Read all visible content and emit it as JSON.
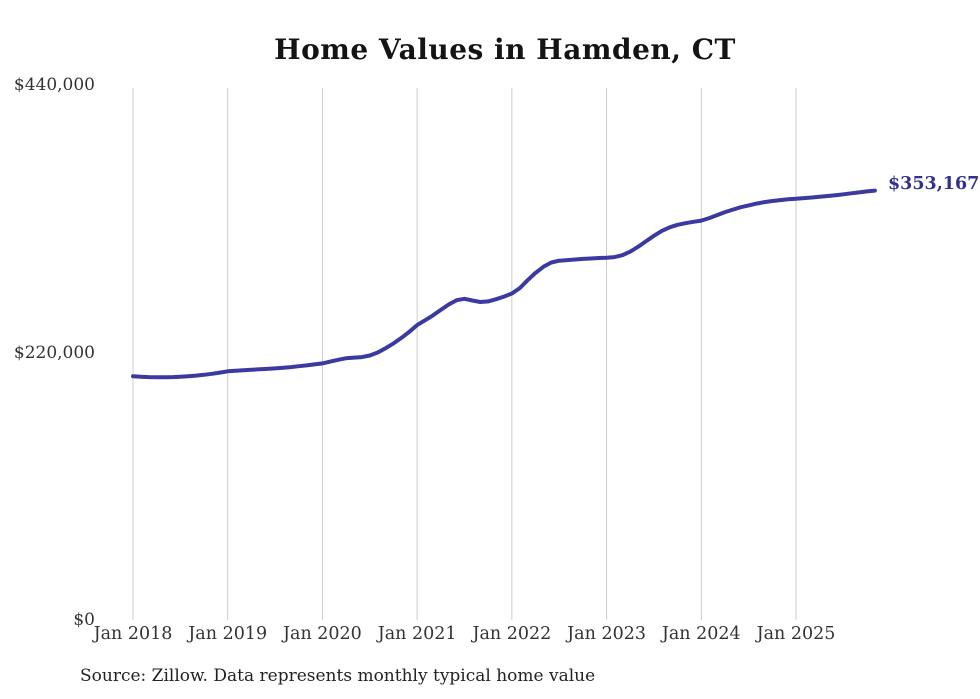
{
  "accent_color": "#3c3aa0",
  "label_color": "#31308f",
  "gridline_color": "#cccccc",
  "chart_data": {
    "type": "line",
    "title": "Home Values in Hamden, CT",
    "source_note": "Source: Zillow. Data represents monthly typical home value",
    "end_value_label": "$353,167",
    "x_start_month": "2018-01",
    "x_end_month": "2025-11",
    "ylim": [
      0,
      440000
    ],
    "grid": "vertical-only",
    "y_ticks": [
      {
        "label": "$0",
        "value": 0
      },
      {
        "label": "$220,000",
        "value": 220000
      },
      {
        "label": "$440,000",
        "value": 440000
      }
    ],
    "x_ticks": [
      {
        "label": "Jan 2018",
        "month_index": 0
      },
      {
        "label": "Jan 2019",
        "month_index": 12
      },
      {
        "label": "Jan 2020",
        "month_index": 24
      },
      {
        "label": "Jan 2021",
        "month_index": 36
      },
      {
        "label": "Jan 2022",
        "month_index": 48
      },
      {
        "label": "Jan 2023",
        "month_index": 60
      },
      {
        "label": "Jan 2024",
        "month_index": 72
      },
      {
        "label": "Jan 2025",
        "month_index": 84
      }
    ],
    "series": [
      {
        "name": "Typical home value (monthly)",
        "values": [
          200500,
          200100,
          199800,
          199600,
          199600,
          199800,
          200100,
          200500,
          201000,
          201700,
          202500,
          203500,
          204500,
          205000,
          205400,
          205800,
          206200,
          206500,
          206900,
          207400,
          208000,
          208700,
          209400,
          210200,
          211000,
          212500,
          214000,
          215300,
          215800,
          216200,
          217500,
          220000,
          223500,
          227500,
          232000,
          237000,
          242500,
          246500,
          250500,
          255000,
          259500,
          263000,
          264200,
          262800,
          261500,
          262000,
          263800,
          266000,
          268500,
          273000,
          279500,
          285500,
          290500,
          294000,
          295500,
          296000,
          296500,
          297000,
          297300,
          297700,
          298000,
          298500,
          300000,
          303000,
          307000,
          311500,
          316000,
          320000,
          323000,
          325000,
          326300,
          327500,
          328500,
          330500,
          333000,
          335500,
          337500,
          339500,
          341000,
          342500,
          343700,
          344600,
          345300,
          346000,
          346500,
          347000,
          347500,
          348100,
          348700,
          349400,
          350100,
          350900,
          351700,
          352500,
          353167
        ]
      }
    ]
  }
}
